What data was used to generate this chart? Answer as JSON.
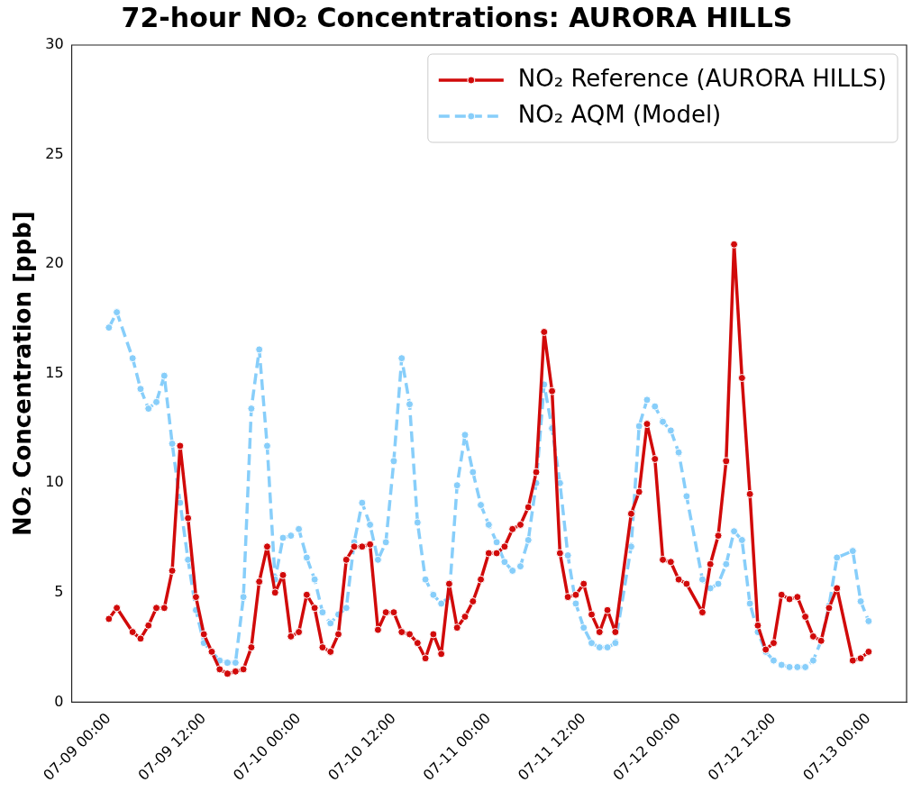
{
  "chart_data": {
    "type": "line",
    "title": "72-hour NO₂ Concentrations: AURORA HILLS",
    "ylabel": "NO₂ Concentration [ppb]",
    "x": [
      "--07-09T00:00",
      "--07-09T01:00",
      "--07-09T03:00",
      "--07-09T04:00",
      "--07-09T05:00",
      "--07-09T06:00",
      "--07-09T07:00",
      "--07-09T08:00",
      "--07-09T09:00",
      "--07-09T10:00",
      "--07-09T11:00",
      "--07-09T12:00",
      "--07-09T13:00",
      "--07-09T14:00",
      "--07-09T15:00",
      "--07-09T16:00",
      "--07-09T17:00",
      "--07-09T18:00",
      "--07-09T19:00",
      "--07-09T20:00",
      "--07-09T21:00",
      "--07-09T22:00",
      "--07-09T23:00",
      "--07-10T00:00",
      "--07-10T01:00",
      "--07-10T02:00",
      "--07-10T03:00",
      "--07-10T04:00",
      "--07-10T05:00",
      "--07-10T06:00",
      "--07-10T07:00",
      "--07-10T08:00",
      "--07-10T09:00",
      "--07-10T10:00",
      "--07-10T11:00",
      "--07-10T12:00",
      "--07-10T13:00",
      "--07-10T14:00",
      "--07-10T15:00",
      "--07-10T16:00",
      "--07-10T17:00",
      "--07-10T18:00",
      "--07-10T19:00",
      "--07-10T20:00",
      "--07-10T21:00",
      "--07-10T22:00",
      "--07-10T23:00",
      "--07-11T00:00",
      "--07-11T01:00",
      "--07-11T02:00",
      "--07-11T03:00",
      "--07-11T04:00",
      "--07-11T05:00",
      "--07-11T06:00",
      "--07-11T07:00",
      "--07-11T08:00",
      "--07-11T09:00",
      "--07-11T10:00",
      "--07-11T11:00",
      "--07-11T12:00",
      "--07-11T13:00",
      "--07-11T14:00",
      "--07-11T15:00",
      "--07-11T16:00",
      "--07-11T18:00",
      "--07-11T19:00",
      "--07-11T20:00",
      "--07-11T21:00",
      "--07-11T22:00",
      "--07-11T23:00",
      "--07-12T00:00",
      "--07-12T01:00",
      "--07-12T03:00",
      "--07-12T04:00",
      "--07-12T05:00",
      "--07-12T06:00",
      "--07-12T07:00",
      "--07-12T08:00",
      "--07-12T09:00",
      "--07-12T10:00",
      "--07-12T11:00",
      "--07-12T12:00",
      "--07-12T13:00",
      "--07-12T14:00",
      "--07-12T15:00",
      "--07-12T16:00",
      "--07-12T17:00",
      "--07-12T18:00",
      "--07-12T19:00",
      "--07-12T20:00",
      "--07-12T22:00",
      "--07-12T23:00",
      "--07-13T00:00"
    ],
    "series": [
      {
        "name": "NO₂ Reference (AURORA HILLS)",
        "color": "#d10a0a",
        "line_style": "solid",
        "values": [
          3.8,
          4.3,
          3.2,
          2.9,
          3.5,
          4.3,
          4.3,
          6.0,
          11.7,
          8.4,
          4.8,
          3.1,
          2.3,
          1.5,
          1.3,
          1.4,
          1.5,
          2.5,
          5.5,
          7.1,
          5.0,
          5.8,
          3.0,
          3.2,
          4.9,
          4.3,
          2.5,
          2.3,
          3.1,
          6.5,
          7.1,
          7.1,
          7.2,
          3.3,
          4.1,
          4.1,
          3.2,
          3.1,
          2.7,
          2.0,
          3.1,
          2.2,
          5.4,
          3.4,
          3.9,
          4.6,
          5.6,
          6.8,
          6.8,
          7.1,
          7.9,
          8.1,
          8.9,
          10.5,
          16.9,
          14.2,
          6.8,
          4.8,
          4.9,
          5.4,
          4.0,
          3.2,
          4.2,
          3.2,
          8.6,
          9.6,
          12.7,
          11.1,
          6.5,
          6.4,
          5.6,
          5.4,
          4.1,
          6.3,
          7.6,
          11.0,
          20.9,
          14.8,
          9.5,
          3.5,
          2.4,
          2.7,
          4.9,
          4.7,
          4.8,
          3.9,
          3.0,
          2.8,
          4.3,
          5.2,
          1.9,
          2.0,
          2.3
        ]
      },
      {
        "name": "NO₂ AQM (Model)",
        "color": "#87cefa",
        "line_style": "dashed",
        "values": [
          17.1,
          17.8,
          15.7,
          14.3,
          13.4,
          13.7,
          14.9,
          11.8,
          9.1,
          6.5,
          4.2,
          2.7,
          2.3,
          1.9,
          1.8,
          1.8,
          4.8,
          13.4,
          16.1,
          11.7,
          5.6,
          7.5,
          7.6,
          7.9,
          6.6,
          5.6,
          4.1,
          3.6,
          4.0,
          4.3,
          7.3,
          9.1,
          8.1,
          6.5,
          7.3,
          11.0,
          15.7,
          13.6,
          8.2,
          5.6,
          4.9,
          4.5,
          4.8,
          9.9,
          12.2,
          10.5,
          9.0,
          8.1,
          7.3,
          6.4,
          6.0,
          6.2,
          7.4,
          10.0,
          14.5,
          12.5,
          10.0,
          6.7,
          4.5,
          3.4,
          2.7,
          2.5,
          2.5,
          2.7,
          7.1,
          12.6,
          13.8,
          13.5,
          12.8,
          12.4,
          11.4,
          9.4,
          5.6,
          5.2,
          5.4,
          6.3,
          7.8,
          7.4,
          4.5,
          3.2,
          2.3,
          1.9,
          1.7,
          1.6,
          1.6,
          1.6,
          1.9,
          2.8,
          4.4,
          6.6,
          6.9,
          4.6,
          3.7
        ]
      }
    ],
    "xlim": [
      "--07-08T19:18",
      "--07-13T04:48"
    ],
    "xticks": [
      {
        "value": "--07-09T00:00",
        "label": "07-09 00:00"
      },
      {
        "value": "--07-09T12:00",
        "label": "07-09 12:00"
      },
      {
        "value": "--07-10T00:00",
        "label": "07-10 00:00"
      },
      {
        "value": "--07-10T12:00",
        "label": "07-10 12:00"
      },
      {
        "value": "--07-11T00:00",
        "label": "07-11 00:00"
      },
      {
        "value": "--07-11T12:00",
        "label": "07-11 12:00"
      },
      {
        "value": "--07-12T00:00",
        "label": "07-12 00:00"
      },
      {
        "value": "--07-12T12:00",
        "label": "07-12 12:00"
      },
      {
        "value": "--07-13T00:00",
        "label": "07-13 00:00"
      }
    ],
    "ylim": [
      0,
      30
    ],
    "yticks": [
      0,
      5,
      10,
      15,
      20,
      25,
      30
    ],
    "marker": "circle",
    "legend": "top right",
    "grid": false
  }
}
